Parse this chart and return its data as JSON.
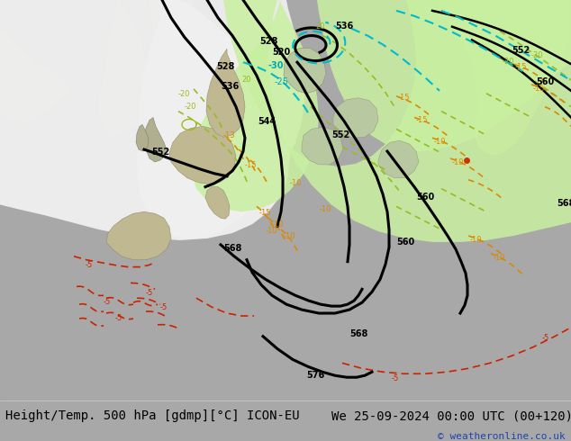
{
  "title_left": "Height/Temp. 500 hPa [gdmp][°C] ICON-EU",
  "title_right": "We 25-09-2024 00:00 UTC (00+120)",
  "copyright": "© weatheronline.co.uk",
  "ocean_color": "#a8a8a8",
  "land_color": "#c8c4a0",
  "white_fan_color": "#f0f0f0",
  "green_fill_color": "#c8f0a0",
  "bottom_bar_color": "#ffffff",
  "text_color": "#000000",
  "copyright_color": "#2244aa",
  "contour_black": "#000000",
  "contour_cyan": "#00bbcc",
  "contour_green": "#88bb00",
  "contour_orange": "#dd8800",
  "contour_red": "#cc2200",
  "font_size_title": 10,
  "font_size_copyright": 8
}
